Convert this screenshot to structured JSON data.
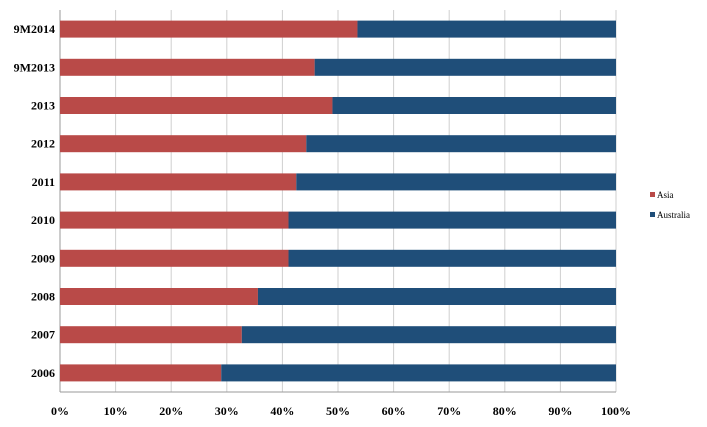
{
  "chart_data": {
    "type": "bar",
    "orientation": "horizontal",
    "stacked": "percent",
    "categories": [
      "9M2014",
      "9M2013",
      "2013",
      "2012",
      "2011",
      "2010",
      "2009",
      "2008",
      "2007",
      "2006"
    ],
    "series": [
      {
        "name": "Asia",
        "color": "#b94a48",
        "values": [
          53.5,
          45.8,
          49.0,
          44.3,
          42.5,
          41.1,
          41.1,
          35.6,
          32.7,
          29.0
        ]
      },
      {
        "name": "Australia",
        "color": "#1f4e79",
        "values": [
          46.5,
          54.2,
          51.0,
          55.7,
          57.5,
          58.9,
          58.9,
          64.4,
          67.3,
          71.0
        ]
      }
    ],
    "xlim": [
      0,
      100
    ],
    "x_ticks": [
      0,
      10,
      20,
      30,
      40,
      50,
      60,
      70,
      80,
      90,
      100
    ],
    "x_tick_labels": [
      "0%",
      "10%",
      "20%",
      "30%",
      "40%",
      "50%",
      "60%",
      "70%",
      "80%",
      "90%",
      "100%"
    ],
    "grid": true,
    "legend_position": "right"
  }
}
